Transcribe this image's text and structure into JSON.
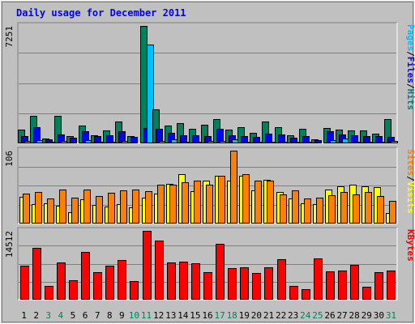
{
  "chart_data": {
    "type": "bar",
    "title": "Daily usage for December 2011",
    "days": [
      "1",
      "2",
      "3",
      "4",
      "5",
      "6",
      "7",
      "8",
      "9",
      "10",
      "11",
      "12",
      "13",
      "14",
      "15",
      "16",
      "17",
      "18",
      "19",
      "20",
      "21",
      "22",
      "23",
      "24",
      "25",
      "26",
      "27",
      "28",
      "29",
      "30",
      "31"
    ],
    "weekend_days": [
      "3",
      "4",
      "10",
      "11",
      "17",
      "18",
      "24",
      "25",
      "31"
    ],
    "panels": [
      {
        "id": "hits",
        "max_label": "7251",
        "ymax": 7251,
        "side_labels": [
          {
            "text": "Pages",
            "color": "#00C0FF"
          },
          {
            "text": "Files",
            "color": "#0000FF"
          },
          {
            "text": "Hits",
            "color": "#008080"
          }
        ],
        "series": [
          {
            "name": "Hits",
            "color": "#00805C",
            "values": [
              870,
              1720,
              300,
              1680,
              450,
              1110,
              520,
              800,
              1340,
              470,
              7251,
              2120,
              1080,
              1230,
              920,
              1160,
              1490,
              850,
              980,
              640,
              1360,
              980,
              510,
              890,
              240,
              950,
              850,
              790,
              820,
              580,
              1500
            ]
          },
          {
            "name": "Files",
            "color": "#0000FF",
            "values": [
              430,
              1000,
              260,
              560,
              340,
              760,
              450,
              520,
              740,
              390,
              930,
              920,
              630,
              490,
              510,
              470,
              880,
              510,
              450,
              410,
              590,
              570,
              340,
              430,
              190,
              760,
              530,
              510,
              430,
              430,
              400
            ]
          },
          {
            "name": "Pages",
            "color": "#00C0FF",
            "values": [
              140,
              190,
              90,
              140,
              70,
              200,
              80,
              110,
              150,
              70,
              6100,
              160,
              240,
              90,
              90,
              150,
              170,
              250,
              110,
              110,
              120,
              110,
              80,
              120,
              40,
              190,
              300,
              110,
              110,
              100,
              130
            ]
          }
        ]
      },
      {
        "id": "visits",
        "max_label": "106",
        "ymax": 106,
        "side_labels": [
          {
            "text": "Sites",
            "color": "#FF8000"
          },
          {
            "text": "Visits",
            "color": "#FFFF00"
          }
        ],
        "series": [
          {
            "name": "Visits",
            "color": "#FFFF00",
            "values": [
              39,
              28,
              30,
              26,
              17,
              35,
              27,
              25,
              28,
              24,
              38,
              44,
              58,
              72,
              47,
              62,
              70,
              62,
              70,
              48,
              64,
              46,
              37,
              30,
              28,
              50,
              54,
              56,
              54,
              53,
              15
            ]
          },
          {
            "name": "Sites",
            "color": "#FF8000",
            "values": [
              44,
              46,
              36,
              49,
              38,
              50,
              40,
              45,
              48,
              49,
              47,
              56,
              56,
              60,
              63,
              56,
              70,
              106,
              72,
              63,
              62,
              42,
              48,
              36,
              38,
              41,
              46,
              42,
              46,
              40,
              33
            ]
          }
        ]
      },
      {
        "id": "kbytes",
        "max_label": "14512",
        "ymax": 14512,
        "side_labels": [
          {
            "text": "KBytes",
            "color": "#FF0000"
          }
        ],
        "series": [
          {
            "name": "KBytes",
            "color": "#FF0000",
            "values": [
              7100,
              10900,
              2900,
              7800,
              4100,
              10000,
              5800,
              7100,
              8400,
              3900,
              14512,
              12400,
              7900,
              8100,
              7600,
              5800,
              11800,
              6700,
              6800,
              5700,
              6800,
              8600,
              2900,
              2300,
              8700,
              5900,
              6200,
              7300,
              2800,
              5800,
              6200
            ]
          }
        ]
      }
    ]
  }
}
